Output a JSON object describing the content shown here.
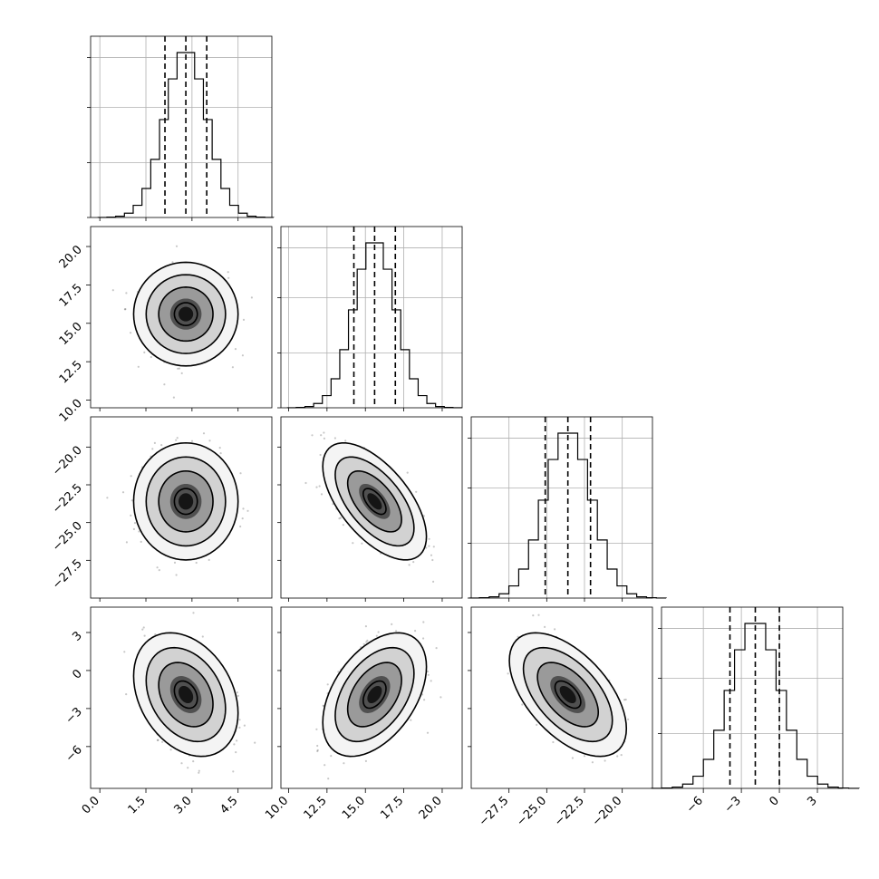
{
  "chart_data": {
    "type": "corner",
    "title": "",
    "parameters": [
      {
        "range": [
          -0.3,
          5.6
        ],
        "ticks": [
          0.0,
          1.5,
          3.0,
          4.5
        ],
        "tick_labels": [
          "0.0",
          "1.5",
          "3.0",
          "4.5"
        ],
        "mean": 2.8,
        "sd": 0.68,
        "quantiles": [
          2.12,
          2.8,
          3.48
        ]
      },
      {
        "range": [
          9.5,
          21.3
        ],
        "ticks": [
          10.0,
          12.5,
          15.0,
          17.5,
          20.0
        ],
        "tick_labels": [
          "10.0",
          "12.5",
          "15.0",
          "17.5",
          "20.0"
        ],
        "mean": 15.6,
        "sd": 1.35,
        "quantiles": [
          14.25,
          15.6,
          16.95
        ]
      },
      {
        "range": [
          -30.0,
          -18.0
        ],
        "ticks": [
          -27.5,
          -25.0,
          -22.5,
          -20.0
        ],
        "tick_labels": [
          "−27.5",
          "−25.0",
          "−22.5",
          "−20.0"
        ],
        "mean": -23.6,
        "sd": 1.55,
        "quantiles": [
          -25.1,
          -23.6,
          -22.1
        ]
      },
      {
        "range": [
          -9.3,
          5.0
        ],
        "ticks": [
          -6,
          -3,
          0,
          3
        ],
        "tick_labels": [
          "−6",
          "−3",
          "0",
          "3"
        ],
        "mean": -1.9,
        "sd": 1.95,
        "quantiles": [
          -3.9,
          -1.9,
          0.0
        ]
      }
    ],
    "correlations": [
      [
        1.0,
        0.0,
        0.0,
        -0.3
      ],
      [
        0.0,
        1.0,
        -0.6,
        0.45
      ],
      [
        0.0,
        -0.6,
        1.0,
        -0.55
      ],
      [
        -0.3,
        0.45,
        -0.55,
        1.0
      ]
    ],
    "diagonal": "histogram",
    "off_diagonal": "scatter with density contours",
    "quantile_lines": "dashed",
    "grid": true,
    "legend": "none",
    "colors": {
      "line": "#000000",
      "grid": "#b0b0b0",
      "points": "#000000"
    }
  }
}
